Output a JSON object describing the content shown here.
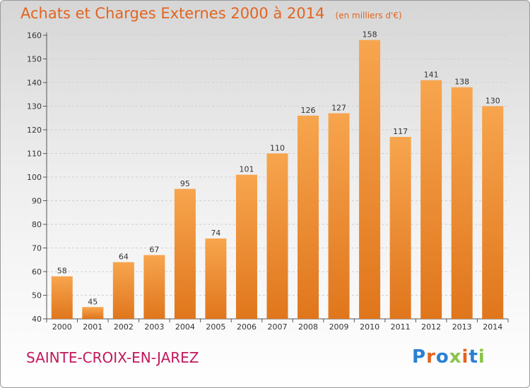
{
  "title": "Achats et Charges Externes 2000 à 2014",
  "subtitle": "(en milliers d'€)",
  "commune": "SAINTE-CROIX-EN-JAREZ",
  "logo": {
    "text": "Proxiti",
    "letter_colors": [
      "#2a7fd4",
      "#e2641f",
      "#2a7fd4",
      "#8bc34a",
      "#e2641f",
      "#2a7fd4",
      "#8bc34a"
    ]
  },
  "colors": {
    "bar_light": "#f7a54e",
    "bar_dark": "#e0761c",
    "title": "#e2641f",
    "commune": "#c2185b"
  },
  "chart_data": {
    "type": "bar",
    "title": "Achats et Charges Externes 2000 à 2014",
    "subtitle": "(en milliers d'€)",
    "categories": [
      "2000",
      "2001",
      "2002",
      "2003",
      "2004",
      "2005",
      "2006",
      "2007",
      "2008",
      "2009",
      "2010",
      "2011",
      "2012",
      "2013",
      "2014"
    ],
    "values": [
      58,
      45,
      64,
      67,
      95,
      74,
      101,
      110,
      126,
      127,
      158,
      117,
      141,
      138,
      130
    ],
    "ylim": [
      40,
      160
    ],
    "yticks": [
      40,
      50,
      60,
      70,
      80,
      90,
      100,
      110,
      120,
      130,
      140,
      150,
      160
    ],
    "grid": true,
    "data_labels": true
  }
}
